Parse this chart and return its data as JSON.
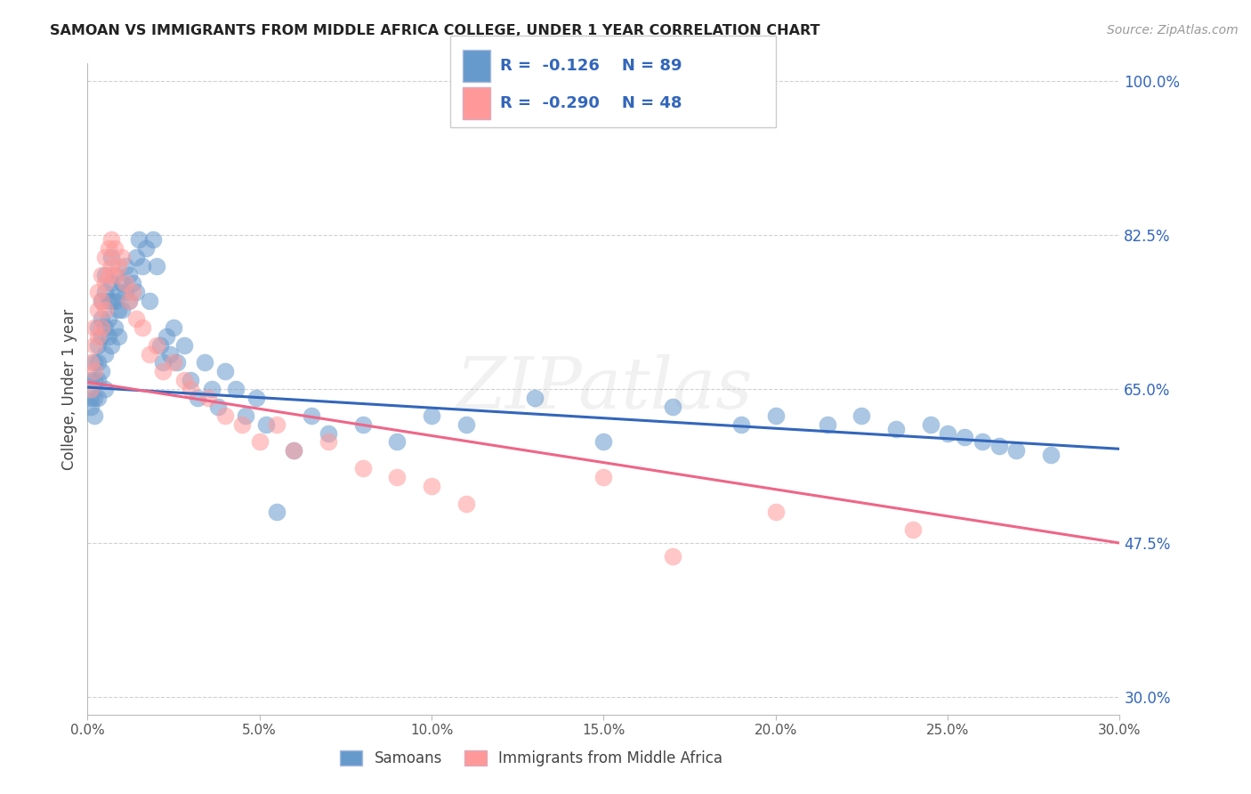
{
  "title": "SAMOAN VS IMMIGRANTS FROM MIDDLE AFRICA COLLEGE, UNDER 1 YEAR CORRELATION CHART",
  "source": "Source: ZipAtlas.com",
  "ylabel": "College, Under 1 year",
  "xlim": [
    0.0,
    0.3
  ],
  "ylim": [
    0.28,
    1.02
  ],
  "xticks": [
    0.0,
    0.05,
    0.1,
    0.15,
    0.2,
    0.25,
    0.3
  ],
  "yticks": [
    0.3,
    0.475,
    0.65,
    0.825,
    1.0
  ],
  "ytick_labels": [
    "30.0%",
    "47.5%",
    "65.0%",
    "82.5%",
    "100.0%"
  ],
  "xtick_labels": [
    "0.0%",
    "5.0%",
    "10.0%",
    "15.0%",
    "20.0%",
    "25.0%",
    "30.0%"
  ],
  "blue_color": "#6699CC",
  "pink_color": "#FF9999",
  "blue_line_color": "#3366BB",
  "pink_line_color": "#EE6688",
  "legend_text_color": "#3366BB",
  "watermark": "ZIPatlas",
  "R_blue": -0.126,
  "N_blue": 89,
  "R_pink": -0.29,
  "N_pink": 48,
  "blue_scatter_x": [
    0.001,
    0.001,
    0.001,
    0.002,
    0.002,
    0.002,
    0.002,
    0.003,
    0.003,
    0.003,
    0.003,
    0.003,
    0.004,
    0.004,
    0.004,
    0.004,
    0.005,
    0.005,
    0.005,
    0.005,
    0.005,
    0.006,
    0.006,
    0.006,
    0.007,
    0.007,
    0.007,
    0.007,
    0.008,
    0.008,
    0.008,
    0.009,
    0.009,
    0.009,
    0.01,
    0.01,
    0.011,
    0.011,
    0.012,
    0.012,
    0.013,
    0.014,
    0.014,
    0.015,
    0.016,
    0.017,
    0.018,
    0.019,
    0.02,
    0.021,
    0.022,
    0.023,
    0.024,
    0.025,
    0.026,
    0.028,
    0.03,
    0.032,
    0.034,
    0.036,
    0.038,
    0.04,
    0.043,
    0.046,
    0.049,
    0.052,
    0.055,
    0.06,
    0.065,
    0.07,
    0.08,
    0.09,
    0.1,
    0.11,
    0.13,
    0.15,
    0.17,
    0.19,
    0.2,
    0.215,
    0.225,
    0.235,
    0.245,
    0.25,
    0.255,
    0.26,
    0.265,
    0.27,
    0.28
  ],
  "blue_scatter_y": [
    0.66,
    0.64,
    0.63,
    0.68,
    0.66,
    0.64,
    0.62,
    0.72,
    0.7,
    0.68,
    0.66,
    0.64,
    0.75,
    0.73,
    0.71,
    0.67,
    0.78,
    0.76,
    0.72,
    0.69,
    0.65,
    0.75,
    0.73,
    0.71,
    0.8,
    0.77,
    0.75,
    0.7,
    0.78,
    0.75,
    0.72,
    0.76,
    0.74,
    0.71,
    0.77,
    0.74,
    0.79,
    0.76,
    0.78,
    0.75,
    0.77,
    0.8,
    0.76,
    0.82,
    0.79,
    0.81,
    0.75,
    0.82,
    0.79,
    0.7,
    0.68,
    0.71,
    0.69,
    0.72,
    0.68,
    0.7,
    0.66,
    0.64,
    0.68,
    0.65,
    0.63,
    0.67,
    0.65,
    0.62,
    0.64,
    0.61,
    0.51,
    0.58,
    0.62,
    0.6,
    0.61,
    0.59,
    0.62,
    0.61,
    0.64,
    0.59,
    0.63,
    0.61,
    0.62,
    0.61,
    0.62,
    0.605,
    0.61,
    0.6,
    0.595,
    0.59,
    0.585,
    0.58,
    0.575
  ],
  "pink_scatter_x": [
    0.001,
    0.001,
    0.002,
    0.002,
    0.002,
    0.003,
    0.003,
    0.003,
    0.004,
    0.004,
    0.004,
    0.005,
    0.005,
    0.005,
    0.006,
    0.006,
    0.007,
    0.007,
    0.008,
    0.008,
    0.009,
    0.01,
    0.011,
    0.012,
    0.013,
    0.014,
    0.016,
    0.018,
    0.02,
    0.022,
    0.025,
    0.028,
    0.03,
    0.035,
    0.04,
    0.045,
    0.05,
    0.055,
    0.06,
    0.07,
    0.08,
    0.09,
    0.1,
    0.11,
    0.15,
    0.17,
    0.2,
    0.24
  ],
  "pink_scatter_y": [
    0.68,
    0.65,
    0.72,
    0.7,
    0.67,
    0.76,
    0.74,
    0.71,
    0.78,
    0.75,
    0.72,
    0.8,
    0.77,
    0.74,
    0.81,
    0.78,
    0.82,
    0.79,
    0.81,
    0.78,
    0.79,
    0.8,
    0.77,
    0.75,
    0.76,
    0.73,
    0.72,
    0.69,
    0.7,
    0.67,
    0.68,
    0.66,
    0.65,
    0.64,
    0.62,
    0.61,
    0.59,
    0.61,
    0.58,
    0.59,
    0.56,
    0.55,
    0.54,
    0.52,
    0.55,
    0.46,
    0.51,
    0.49
  ]
}
